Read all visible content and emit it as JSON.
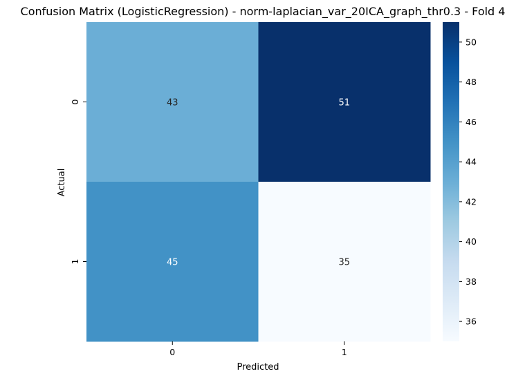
{
  "chart_data": {
    "type": "heatmap",
    "title": "Confusion Matrix (LogisticRegression) - norm-laplacian_var_20ICA_graph_thr0.3 - Fold 4",
    "xlabel": "Predicted",
    "ylabel": "Actual",
    "x_categories": [
      "0",
      "1"
    ],
    "y_categories": [
      "0",
      "1"
    ],
    "values": [
      [
        43,
        51
      ],
      [
        45,
        35
      ]
    ],
    "colormap": "Blues",
    "colorbar": {
      "vmin": 35,
      "vmax": 51,
      "ticks": [
        36,
        38,
        40,
        42,
        44,
        46,
        48,
        50
      ]
    }
  }
}
